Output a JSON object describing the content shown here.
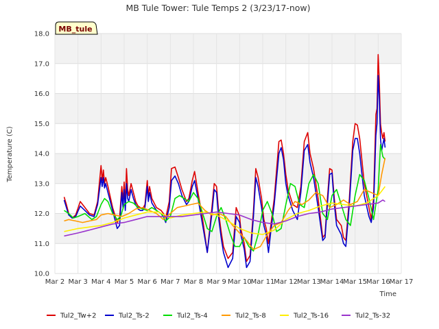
{
  "chart_data": {
    "type": "line",
    "title": "MB Tule Tower: Tule Temps 2 (3/23/17-now)",
    "site_label": "MB_tule",
    "xlabel": "Time",
    "ylabel": "Temperature (C)",
    "xlim": [
      2,
      17
    ],
    "ylim": [
      10.0,
      18.0
    ],
    "x_ticks": [
      2,
      3,
      4,
      5,
      6,
      7,
      8,
      9,
      10,
      11,
      12,
      13,
      14,
      15,
      16,
      17
    ],
    "x_tick_labels": [
      "Mar 2",
      "Mar 3",
      "Mar 4",
      "Mar 5",
      "Mar 6",
      "Mar 7",
      "Mar 8",
      "Mar 9",
      "Mar 10",
      "Mar 11",
      "Mar 12",
      "Mar 13",
      "Mar 14",
      "Mar 15",
      "Mar 16",
      "Mar 17"
    ],
    "y_ticks": [
      10.0,
      11.0,
      12.0,
      13.0,
      14.0,
      15.0,
      16.0,
      17.0,
      18.0
    ],
    "y_tick_labels": [
      "10.0",
      "11.0",
      "12.0",
      "13.0",
      "14.0",
      "15.0",
      "16.0",
      "17.0",
      "18.0"
    ],
    "grid": true,
    "legend_position": "bottom",
    "series": [
      {
        "name": "Tul2_Tw+2",
        "color": "#dd0000",
        "x": [
          2.4,
          2.5,
          2.6,
          2.75,
          2.9,
          3.1,
          3.3,
          3.5,
          3.7,
          3.85,
          4.0,
          4.05,
          4.1,
          4.15,
          4.2,
          4.3,
          4.5,
          4.7,
          4.8,
          4.9,
          4.95,
          5.0,
          5.05,
          5.1,
          5.15,
          5.2,
          5.3,
          5.4,
          5.5,
          5.6,
          5.7,
          5.8,
          5.9,
          6.0,
          6.05,
          6.1,
          6.2,
          6.4,
          6.6,
          6.7,
          6.8,
          6.95,
          7.05,
          7.2,
          7.35,
          7.5,
          7.7,
          7.8,
          7.95,
          8.05,
          8.2,
          8.4,
          8.6,
          8.8,
          8.9,
          9.0,
          9.1,
          9.2,
          9.3,
          9.5,
          9.7,
          9.85,
          10.0,
          10.05,
          10.2,
          10.3,
          10.45,
          10.6,
          10.7,
          10.8,
          10.95,
          11.05,
          11.15,
          11.25,
          11.35,
          11.5,
          11.7,
          11.8,
          11.9,
          12.0,
          12.1,
          12.3,
          12.5,
          12.65,
          12.8,
          12.95,
          13.05,
          13.2,
          13.4,
          13.6,
          13.7,
          13.8,
          13.9,
          14.0,
          14.1,
          14.2,
          14.4,
          14.5,
          14.6,
          14.75,
          14.9,
          15.0,
          15.1,
          15.2,
          15.4,
          15.6,
          15.7,
          15.8,
          15.9,
          15.95,
          16.0,
          16.05,
          16.1,
          16.15,
          16.2,
          16.25,
          16.3
        ],
        "y": [
          12.55,
          12.3,
          12.0,
          11.85,
          11.95,
          12.4,
          12.2,
          12.0,
          11.95,
          12.4,
          13.6,
          13.1,
          13.45,
          13.0,
          13.2,
          12.9,
          12.2,
          11.7,
          11.85,
          12.9,
          12.4,
          13.05,
          12.3,
          13.5,
          12.8,
          12.6,
          13.0,
          12.7,
          12.4,
          12.25,
          12.2,
          12.15,
          12.3,
          13.1,
          12.6,
          12.9,
          12.5,
          12.2,
          12.1,
          12.0,
          11.85,
          12.4,
          13.5,
          13.55,
          13.2,
          12.8,
          12.4,
          12.5,
          13.1,
          13.4,
          12.7,
          11.8,
          10.7,
          12.2,
          13.0,
          12.9,
          12.0,
          11.4,
          10.9,
          10.5,
          10.7,
          12.2,
          11.9,
          11.5,
          11.0,
          10.4,
          10.6,
          12.1,
          13.5,
          13.2,
          12.5,
          11.8,
          11.5,
          11.0,
          11.6,
          12.5,
          14.4,
          14.45,
          14.0,
          13.3,
          12.8,
          12.3,
          12.2,
          12.9,
          14.4,
          14.7,
          14.0,
          13.5,
          12.5,
          11.2,
          11.3,
          12.5,
          13.5,
          13.45,
          12.5,
          11.8,
          11.6,
          11.2,
          11.1,
          12.5,
          14.4,
          15.0,
          14.95,
          14.5,
          13.0,
          12.2,
          11.8,
          12.5,
          15.3,
          15.5,
          17.3,
          16.4,
          15.0,
          14.7,
          14.5,
          14.7,
          14.4
        ],
        "end_label": ""
      },
      {
        "name": "Tul2_Ts-2",
        "color": "#0000cc",
        "x": [
          2.4,
          2.5,
          2.6,
          2.75,
          2.9,
          3.1,
          3.3,
          3.5,
          3.7,
          3.85,
          4.0,
          4.05,
          4.1,
          4.15,
          4.2,
          4.3,
          4.5,
          4.7,
          4.8,
          4.9,
          4.95,
          5.0,
          5.05,
          5.1,
          5.15,
          5.2,
          5.3,
          5.4,
          5.5,
          5.6,
          5.7,
          5.8,
          5.9,
          6.0,
          6.05,
          6.1,
          6.2,
          6.4,
          6.6,
          6.7,
          6.8,
          6.95,
          7.05,
          7.2,
          7.35,
          7.5,
          7.7,
          7.8,
          7.95,
          8.05,
          8.2,
          8.4,
          8.6,
          8.8,
          8.9,
          9.0,
          9.1,
          9.2,
          9.3,
          9.5,
          9.7,
          9.85,
          10.0,
          10.05,
          10.2,
          10.3,
          10.45,
          10.6,
          10.7,
          10.8,
          10.95,
          11.05,
          11.15,
          11.25,
          11.35,
          11.5,
          11.7,
          11.8,
          11.9,
          12.0,
          12.1,
          12.3,
          12.5,
          12.65,
          12.8,
          12.95,
          13.05,
          13.2,
          13.4,
          13.6,
          13.7,
          13.8,
          13.9,
          14.0,
          14.1,
          14.2,
          14.4,
          14.5,
          14.6,
          14.75,
          14.9,
          15.0,
          15.1,
          15.2,
          15.4,
          15.6,
          15.7,
          15.8,
          15.9,
          15.95,
          16.0,
          16.05,
          16.1,
          16.15,
          16.2,
          16.25,
          16.3
        ],
        "y": [
          12.45,
          12.2,
          11.95,
          11.85,
          11.9,
          12.25,
          12.1,
          11.95,
          11.9,
          12.3,
          13.2,
          12.9,
          13.2,
          12.85,
          13.0,
          12.7,
          12.1,
          11.5,
          11.6,
          12.7,
          12.2,
          12.8,
          12.1,
          13.0,
          12.5,
          12.4,
          12.8,
          12.5,
          12.3,
          12.15,
          12.1,
          12.1,
          12.2,
          12.9,
          12.4,
          12.7,
          12.35,
          12.1,
          12.0,
          11.9,
          11.7,
          12.2,
          13.1,
          13.25,
          13.0,
          12.6,
          12.3,
          12.4,
          12.9,
          13.1,
          12.5,
          11.6,
          10.7,
          12.0,
          12.8,
          12.7,
          11.8,
          11.2,
          10.7,
          10.2,
          10.5,
          11.9,
          11.7,
          11.3,
          10.8,
          10.2,
          10.4,
          11.9,
          13.2,
          12.9,
          12.2,
          11.6,
          11.3,
          10.7,
          11.4,
          12.3,
          14.0,
          14.2,
          13.8,
          13.0,
          12.6,
          12.1,
          11.8,
          12.7,
          14.1,
          14.3,
          13.7,
          13.2,
          12.2,
          11.1,
          11.2,
          12.3,
          13.3,
          13.35,
          12.3,
          11.6,
          11.3,
          11.0,
          10.9,
          12.3,
          14.1,
          14.5,
          14.5,
          14.0,
          12.6,
          11.9,
          11.7,
          12.2,
          14.6,
          15.0,
          16.6,
          15.8,
          14.5,
          14.1,
          14.3,
          14.5,
          14.2
        ],
        "end_label": ""
      },
      {
        "name": "Tul2_Ts-4",
        "color": "#00dd00",
        "x": [
          2.4,
          2.6,
          2.8,
          3.0,
          3.3,
          3.6,
          3.8,
          4.0,
          4.15,
          4.3,
          4.5,
          4.7,
          4.85,
          5.0,
          5.2,
          5.4,
          5.6,
          5.8,
          6.0,
          6.2,
          6.4,
          6.6,
          6.8,
          7.0,
          7.2,
          7.4,
          7.6,
          7.8,
          8.0,
          8.2,
          8.4,
          8.6,
          8.8,
          9.0,
          9.2,
          9.4,
          9.6,
          9.8,
          10.0,
          10.2,
          10.4,
          10.6,
          10.8,
          11.0,
          11.2,
          11.4,
          11.6,
          11.8,
          12.0,
          12.2,
          12.4,
          12.6,
          12.8,
          13.0,
          13.2,
          13.4,
          13.6,
          13.8,
          14.0,
          14.2,
          14.4,
          14.6,
          14.8,
          15.0,
          15.2,
          15.4,
          15.6,
          15.8,
          16.0,
          16.1,
          16.2,
          16.3
        ],
        "y": [
          12.1,
          12.0,
          11.85,
          11.9,
          12.0,
          11.8,
          11.9,
          12.3,
          12.5,
          12.4,
          12.0,
          11.8,
          11.9,
          12.3,
          12.4,
          12.35,
          12.2,
          12.15,
          12.1,
          12.2,
          12.1,
          12.0,
          11.75,
          11.9,
          12.5,
          12.6,
          12.5,
          12.4,
          12.7,
          12.5,
          12.0,
          11.5,
          11.4,
          11.9,
          12.2,
          11.8,
          11.3,
          10.9,
          10.9,
          11.2,
          10.9,
          10.75,
          11.3,
          12.1,
          12.4,
          12.0,
          11.4,
          11.5,
          12.3,
          13.0,
          12.9,
          12.3,
          12.2,
          13.0,
          13.3,
          13.0,
          12.0,
          11.8,
          12.6,
          12.8,
          12.3,
          11.8,
          11.6,
          12.6,
          13.3,
          13.1,
          12.5,
          11.8,
          12.8,
          14.3,
          13.9,
          13.8
        ],
        "end_label": ""
      },
      {
        "name": "Tul2_Ts-8",
        "color": "#ff9900",
        "x": [
          2.4,
          2.6,
          2.9,
          3.2,
          3.5,
          3.8,
          4.0,
          4.3,
          4.6,
          4.9,
          5.2,
          5.5,
          5.8,
          6.1,
          6.4,
          6.7,
          7.0,
          7.3,
          7.6,
          7.9,
          8.2,
          8.5,
          8.8,
          9.1,
          9.4,
          9.7,
          10.0,
          10.3,
          10.6,
          10.9,
          11.2,
          11.5,
          11.8,
          12.1,
          12.4,
          12.7,
          13.0,
          13.3,
          13.6,
          13.9,
          14.2,
          14.5,
          14.8,
          15.1,
          15.4,
          15.7,
          16.0,
          16.15,
          16.3
        ],
        "y": [
          11.75,
          11.8,
          11.75,
          11.7,
          11.75,
          11.8,
          11.95,
          12.0,
          11.95,
          11.9,
          12.0,
          12.15,
          12.2,
          12.1,
          12.0,
          11.8,
          12.0,
          12.2,
          12.25,
          12.3,
          12.35,
          12.1,
          11.95,
          12.0,
          11.9,
          11.6,
          11.35,
          11.1,
          10.8,
          10.9,
          11.3,
          11.6,
          11.7,
          12.1,
          12.4,
          12.3,
          12.45,
          12.7,
          12.6,
          12.2,
          12.3,
          12.45,
          12.3,
          12.4,
          12.8,
          12.7,
          12.6,
          13.3,
          13.85
        ],
        "end_label": ""
      },
      {
        "name": "Tul2_Ts-16",
        "color": "#ffee00",
        "x": [
          2.4,
          2.7,
          3.0,
          3.5,
          4.0,
          4.5,
          5.0,
          5.5,
          6.0,
          6.5,
          7.0,
          7.5,
          8.0,
          8.5,
          9.0,
          9.5,
          10.0,
          10.5,
          11.0,
          11.5,
          12.0,
          12.5,
          13.0,
          13.5,
          14.0,
          14.5,
          15.0,
          15.5,
          16.0,
          16.15,
          16.3
        ],
        "y": [
          11.4,
          11.45,
          11.5,
          11.55,
          11.6,
          11.7,
          11.85,
          11.95,
          12.05,
          12.05,
          11.85,
          11.95,
          12.0,
          12.05,
          11.95,
          11.75,
          11.5,
          11.35,
          11.3,
          11.45,
          11.8,
          12.0,
          12.1,
          12.25,
          12.35,
          12.3,
          12.25,
          12.35,
          12.6,
          12.75,
          12.9
        ],
        "end_label": ""
      },
      {
        "name": "Tul2_Ts-32",
        "color": "#9933cc",
        "x": [
          2.4,
          3.0,
          3.5,
          4.0,
          4.5,
          5.0,
          5.5,
          6.0,
          6.5,
          7.0,
          7.5,
          8.0,
          8.5,
          9.0,
          9.5,
          10.0,
          10.5,
          11.0,
          11.5,
          12.0,
          12.5,
          13.0,
          13.5,
          14.0,
          14.5,
          15.0,
          15.5,
          16.0,
          16.2,
          16.3
        ],
        "y": [
          11.25,
          11.35,
          11.45,
          11.55,
          11.65,
          11.7,
          11.8,
          11.9,
          11.9,
          11.9,
          11.9,
          11.95,
          12.0,
          12.05,
          12.0,
          11.95,
          11.8,
          11.7,
          11.65,
          11.75,
          11.9,
          12.0,
          12.05,
          12.15,
          12.2,
          12.25,
          12.3,
          12.35,
          12.45,
          12.4
        ],
        "end_label": ""
      }
    ]
  }
}
